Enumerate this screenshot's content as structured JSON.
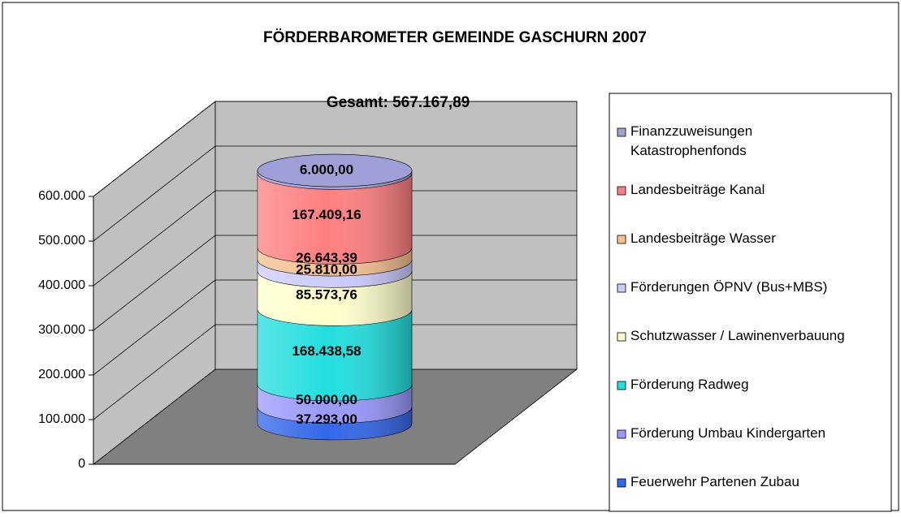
{
  "chart_data": {
    "type": "stacked-cylinder",
    "title": "FÖRDERBAROMETER GEMEINDE GASCHURN 2007",
    "annotation": "Gesamt: 567.167,89",
    "ylim": [
      0,
      600000
    ],
    "yticks": [
      0,
      {
        "value": 100000,
        "label": "100.000"
      },
      {
        "value": 200000,
        "label": "200.000"
      },
      {
        "value": 300000,
        "label": "300.000"
      },
      {
        "value": 400000,
        "label": "400.000"
      },
      {
        "value": 500000,
        "label": "500.000"
      },
      {
        "value": 600000,
        "label": "600.000"
      }
    ],
    "grid": true,
    "legend": "right",
    "series": [
      {
        "name": "Feuerwehr Partenen Zubau",
        "color": "#3366e8",
        "values": [
          37293
        ],
        "value_labels": [
          "37.293,00"
        ]
      },
      {
        "name": "Förderung Umbau Kindergarten",
        "color": "#9999ff",
        "values": [
          50000
        ],
        "value_labels": [
          "50.000,00"
        ]
      },
      {
        "name": "Förderung Radweg",
        "color": "#22dede",
        "values": [
          168438.58
        ],
        "value_labels": [
          "168.438,58"
        ]
      },
      {
        "name": "Schutzwasser / Lawinenverbauung",
        "color": "#ffffcc",
        "values": [
          85573.76
        ],
        "value_labels": [
          "85.573,76"
        ]
      },
      {
        "name": "Förderungen ÖPNV (Bus+MBS)",
        "color": "#ccccff",
        "values": [
          25810
        ],
        "value_labels": [
          "25.810,00"
        ]
      },
      {
        "name": "Landesbeiträge Wasser",
        "color": "#f6c08e",
        "values": [
          26643.39
        ],
        "value_labels": [
          "26.643,39"
        ]
      },
      {
        "name": "Landesbeiträge Kanal",
        "color": "#ff7f7f",
        "values": [
          167409.16
        ],
        "value_labels": [
          "167.409,16"
        ]
      },
      {
        "name": "Finanzzuweisungen Katastrophenfonds",
        "color": "#a0a0d8",
        "values": [
          6000
        ],
        "value_labels": [
          "6.000,00"
        ]
      }
    ]
  }
}
